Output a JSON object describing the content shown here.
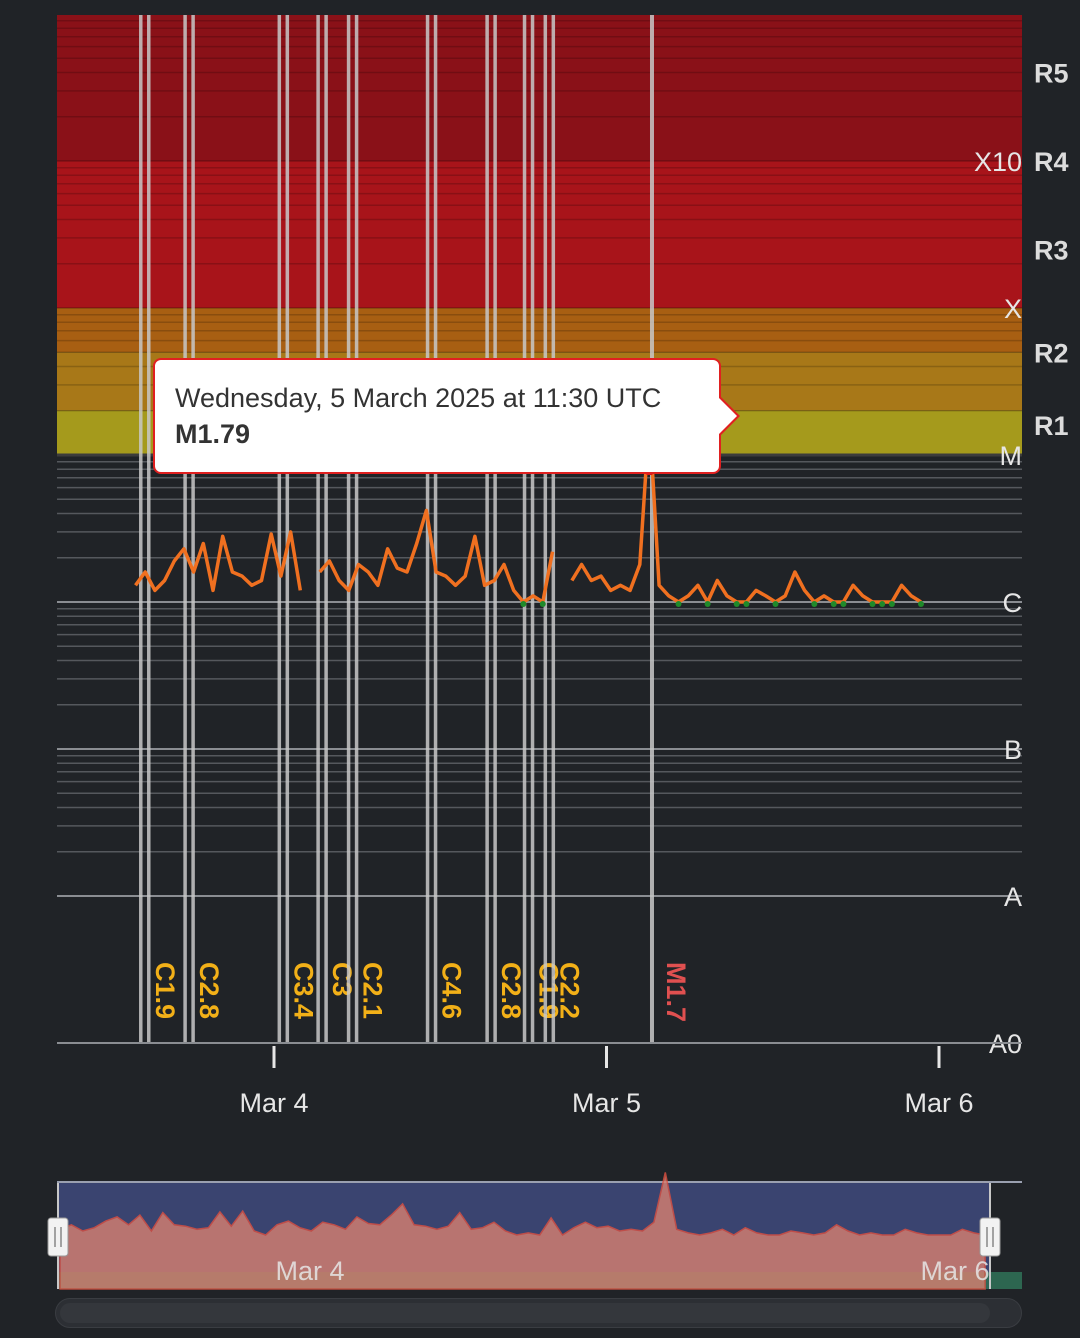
{
  "colors": {
    "background": "#202327",
    "r5_band": "#8a1118",
    "r4_band": "#a8141a",
    "r3_band": "#a85f12",
    "r2_band": "#a87818",
    "r1_band": "#a59a1c",
    "flux_line": "#f07020",
    "flux_low_marker": "#1f8a2a",
    "flare_line": "#c8c8c8",
    "c_flare_label": "#f2b018",
    "m_flare_label": "#e05050",
    "tooltip_border": "#e02020",
    "navigator_fill": "#3a4470"
  },
  "chart_data": {
    "type": "line",
    "title": "",
    "xlabel": "",
    "ylabel": "",
    "x_ticks": [
      "Mar 4",
      "Mar 5",
      "Mar 6"
    ],
    "y_scale": "log",
    "y_class_labels": [
      "X10",
      "X",
      "M",
      "C",
      "B",
      "A",
      "A0"
    ],
    "r_scale_labels": [
      "R5",
      "R4",
      "R3",
      "R2",
      "R1"
    ],
    "series": [
      {
        "type": "line",
        "color": "#f07020",
        "x_hours_from_mar3_00utc": [
          14.0,
          14.7,
          15.4,
          16.1,
          16.8,
          17.5,
          18.2,
          18.9,
          19.6,
          20.3,
          21.0,
          21.7,
          22.4,
          23.1,
          23.8,
          24.5,
          25.2,
          25.9,
          26.6,
          27.3,
          28.0,
          28.7,
          29.4,
          30.1,
          30.8,
          31.5,
          32.2,
          32.9,
          33.6,
          34.3,
          35.0,
          35.7,
          36.4,
          37.1,
          37.8,
          38.5,
          39.2,
          39.9,
          40.6,
          41.3,
          42.0,
          42.7,
          43.4,
          44.1,
          44.8,
          45.5,
          46.2,
          46.9,
          47.6,
          48.3,
          49.0,
          49.7,
          50.4,
          51.1,
          51.8,
          52.5,
          53.2,
          53.9,
          54.6,
          55.3,
          56.0,
          56.7,
          57.4,
          58.1,
          58.8,
          59.5,
          60.2,
          60.9,
          61.6,
          62.3,
          63.0,
          63.7,
          64.4,
          65.1,
          65.8,
          66.5,
          67.2,
          67.9,
          68.6,
          69.3,
          70.0,
          70.7
        ],
        "y_flux_wm2": [
          1.3e-06,
          1.6e-06,
          1.2e-06,
          1.4e-06,
          1.9e-06,
          2.3e-06,
          1.6e-06,
          2.5e-06,
          1.2e-06,
          2.8e-06,
          1.6e-06,
          1.5e-06,
          1.3e-06,
          1.4e-06,
          2.9e-06,
          1.5e-06,
          3e-06,
          1.2e-06,
          null,
          1.6e-06,
          1.9e-06,
          1.4e-06,
          1.2e-06,
          1.8e-06,
          1.6e-06,
          1.3e-06,
          2.3e-06,
          1.7e-06,
          1.6e-06,
          2.5e-06,
          4.2e-06,
          1.6e-06,
          1.5e-06,
          1.3e-06,
          1.5e-06,
          2.8e-06,
          1.3e-06,
          1.4e-06,
          1.8e-06,
          1.2e-06,
          1e-06,
          1.1e-06,
          1e-06,
          2.2e-06,
          null,
          1.4e-06,
          1.8e-06,
          1.4e-06,
          1.5e-06,
          1.2e-06,
          1.3e-06,
          1.2e-06,
          1.8e-06,
          1.79e-05,
          1.3e-06,
          1.1e-06,
          1e-06,
          1.1e-06,
          1.3e-06,
          1e-06,
          1.4e-06,
          1.1e-06,
          1e-06,
          1e-06,
          1.2e-06,
          1.1e-06,
          1e-06,
          1.1e-06,
          1.6e-06,
          1.2e-06,
          1e-06,
          1.1e-06,
          1e-06,
          1e-06,
          1.3e-06,
          1.1e-06,
          1e-06,
          1e-06,
          1e-06,
          1.3e-06,
          1.1e-06,
          1e-06
        ]
      }
    ],
    "flares": [
      {
        "label": "C1.9",
        "hours_from_mar3_00utc": 14.6
      },
      {
        "label": "C2.8",
        "hours_from_mar3_00utc": 17.8
      },
      {
        "label": "C3.4",
        "hours_from_mar3_00utc": 24.6
      },
      {
        "label": "C3",
        "hours_from_mar3_00utc": 27.4
      },
      {
        "label": "C2.1",
        "hours_from_mar3_00utc": 29.6
      },
      {
        "label": "C4.6",
        "hours_from_mar3_00utc": 35.3
      },
      {
        "label": "C2.8",
        "hours_from_mar3_00utc": 39.6
      },
      {
        "label": "C1.9",
        "hours_from_mar3_00utc": 42.3
      },
      {
        "label": "C2.2",
        "hours_from_mar3_00utc": 43.8
      },
      {
        "label": "M1.7",
        "hours_from_mar3_00utc": 51.5
      }
    ]
  },
  "tooltip": {
    "date": "Wednesday, 5 March 2025 at 11:30 UTC",
    "value": "M1.79"
  },
  "navigator": {
    "labels": [
      "Mar 4",
      "Mar 6"
    ]
  }
}
